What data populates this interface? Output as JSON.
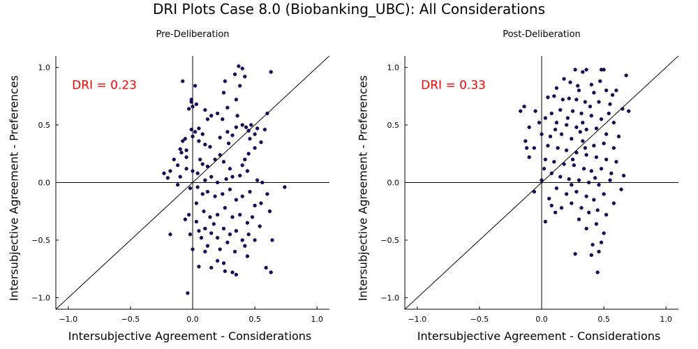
{
  "title": "DRI Plots Case 8.0 (Biobanking_UBC): All Considerations",
  "chart_data": [
    {
      "type": "scatter",
      "title": "Pre-Deliberation",
      "xlabel": "Intersubjective Agreement - Considerations",
      "ylabel": "Intersubjective Agreement - Preferences",
      "xlim": [
        -1.1,
        1.1
      ],
      "ylim": [
        -1.1,
        1.1
      ],
      "xticks": [
        -1.0,
        -0.5,
        0.0,
        0.5,
        1.0
      ],
      "yticks": [
        -1.0,
        -0.5,
        0.0,
        0.5,
        1.0
      ],
      "xtick_labels": [
        "−1.0",
        "−0.5",
        "0.0",
        "0.5",
        "1.0"
      ],
      "ytick_labels": [
        "−1.0",
        "−0.5",
        "0.0",
        "0.5",
        "1.0"
      ],
      "annotation": "DRI = 0.23",
      "grid": false,
      "reference_lines": [
        "x=0",
        "y=0",
        "y=x"
      ],
      "marker_color": "#1a0a6b",
      "annotation_color": "#ff0000",
      "points": [
        [
          -0.08,
          0.88
        ],
        [
          -0.01,
          0.7
        ],
        [
          -0.01,
          0.72
        ],
        [
          0.0,
          0.66
        ],
        [
          0.02,
          0.84
        ],
        [
          -0.03,
          0.64
        ],
        [
          0.03,
          0.68
        ],
        [
          0.26,
          0.88
        ],
        [
          0.34,
          0.94
        ],
        [
          0.37,
          1.01
        ],
        [
          0.4,
          0.99
        ],
        [
          0.42,
          0.92
        ],
        [
          0.63,
          0.96
        ],
        [
          0.38,
          0.84
        ],
        [
          0.25,
          0.78
        ],
        [
          0.35,
          0.72
        ],
        [
          0.28,
          0.65
        ],
        [
          0.2,
          0.6
        ],
        [
          0.24,
          0.55
        ],
        [
          0.15,
          0.58
        ],
        [
          0.1,
          0.63
        ],
        [
          0.12,
          0.55
        ],
        [
          0.05,
          0.47
        ],
        [
          0.08,
          0.42
        ],
        [
          0.02,
          0.44
        ],
        [
          -0.01,
          0.46
        ],
        [
          0.0,
          0.4
        ],
        [
          0.05,
          0.36
        ],
        [
          -0.06,
          0.38
        ],
        [
          -0.08,
          0.36
        ],
        [
          -0.1,
          0.29
        ],
        [
          -0.05,
          0.28
        ],
        [
          0.1,
          0.33
        ],
        [
          0.14,
          0.31
        ],
        [
          0.22,
          0.39
        ],
        [
          0.28,
          0.44
        ],
        [
          0.32,
          0.41
        ],
        [
          0.35,
          0.48
        ],
        [
          0.4,
          0.5
        ],
        [
          0.43,
          0.48
        ],
        [
          0.45,
          0.45
        ],
        [
          0.47,
          0.5
        ],
        [
          0.5,
          0.42
        ],
        [
          0.52,
          0.47
        ],
        [
          0.58,
          0.46
        ],
        [
          0.6,
          0.6
        ],
        [
          0.55,
          0.35
        ],
        [
          0.5,
          0.3
        ],
        [
          0.45,
          0.25
        ],
        [
          0.42,
          0.2
        ],
        [
          0.4,
          0.15
        ],
        [
          0.44,
          0.1
        ],
        [
          0.38,
          0.06
        ],
        [
          0.3,
          0.12
        ],
        [
          0.25,
          0.18
        ],
        [
          0.22,
          0.24
        ],
        [
          0.18,
          0.2
        ],
        [
          0.12,
          0.14
        ],
        [
          0.08,
          0.16
        ],
        [
          0.04,
          0.08
        ],
        [
          0.0,
          0.1
        ],
        [
          -0.05,
          0.12
        ],
        [
          -0.12,
          0.15
        ],
        [
          -0.18,
          0.1
        ],
        [
          -0.23,
          0.08
        ],
        [
          -0.2,
          0.04
        ],
        [
          -0.1,
          0.05
        ],
        [
          -0.15,
          0.2
        ],
        [
          -0.05,
          0.22
        ],
        [
          0.06,
          0.2
        ],
        [
          0.1,
          0.02
        ],
        [
          0.15,
          0.05
        ],
        [
          0.2,
          0.0
        ],
        [
          0.27,
          0.03
        ],
        [
          0.32,
          0.05
        ],
        [
          0.52,
          0.02
        ],
        [
          0.56,
          0.0
        ],
        [
          0.74,
          -0.04
        ],
        [
          -0.12,
          -0.02
        ],
        [
          -0.02,
          -0.05
        ],
        [
          0.04,
          -0.04
        ],
        [
          0.08,
          -0.1
        ],
        [
          0.12,
          -0.08
        ],
        [
          0.18,
          -0.12
        ],
        [
          0.24,
          -0.1
        ],
        [
          0.3,
          -0.06
        ],
        [
          0.35,
          -0.15
        ],
        [
          0.4,
          -0.12
        ],
        [
          0.46,
          -0.08
        ],
        [
          0.5,
          -0.2
        ],
        [
          0.55,
          -0.18
        ],
        [
          0.6,
          -0.1
        ],
        [
          0.62,
          -0.25
        ],
        [
          0.03,
          -0.18
        ],
        [
          0.09,
          -0.25
        ],
        [
          0.14,
          -0.3
        ],
        [
          0.2,
          -0.28
        ],
        [
          0.26,
          -0.22
        ],
        [
          0.32,
          -0.3
        ],
        [
          0.38,
          -0.28
        ],
        [
          0.44,
          -0.35
        ],
        [
          0.48,
          -0.3
        ],
        [
          0.54,
          -0.38
        ],
        [
          -0.06,
          -0.32
        ],
        [
          -0.03,
          -0.28
        ],
        [
          0.05,
          -0.42
        ],
        [
          0.1,
          -0.4
        ],
        [
          0.15,
          -0.44
        ],
        [
          0.2,
          -0.48
        ],
        [
          0.25,
          -0.4
        ],
        [
          0.3,
          -0.45
        ],
        [
          0.35,
          -0.42
        ],
        [
          0.4,
          -0.5
        ],
        [
          0.45,
          -0.45
        ],
        [
          -0.18,
          -0.45
        ],
        [
          -0.02,
          -0.45
        ],
        [
          0.07,
          -0.48
        ],
        [
          0.12,
          -0.55
        ],
        [
          0.22,
          -0.58
        ],
        [
          0.28,
          -0.52
        ],
        [
          0.34,
          -0.6
        ],
        [
          0.42,
          -0.55
        ],
        [
          0.5,
          -0.5
        ],
        [
          0.64,
          -0.5
        ],
        [
          0.0,
          -0.58
        ],
        [
          0.1,
          -0.6
        ],
        [
          0.2,
          -0.68
        ],
        [
          0.25,
          -0.7
        ],
        [
          0.15,
          -0.74
        ],
        [
          0.05,
          -0.73
        ],
        [
          0.32,
          -0.78
        ],
        [
          0.26,
          -0.77
        ],
        [
          0.35,
          -0.8
        ],
        [
          0.44,
          -0.64
        ],
        [
          0.59,
          -0.74
        ],
        [
          0.63,
          -0.78
        ],
        [
          -0.04,
          -0.96
        ],
        [
          0.17,
          -0.36
        ],
        [
          0.03,
          -0.34
        ],
        [
          -0.09,
          0.26
        ],
        [
          0.36,
          0.58
        ],
        [
          0.46,
          0.38
        ],
        [
          0.29,
          0.34
        ]
      ]
    },
    {
      "type": "scatter",
      "title": "Post-Deliberation",
      "xlabel": "Intersubjective Agreement - Considerations",
      "ylabel": "Intersubjective Agreement - Preferences",
      "xlim": [
        -1.1,
        1.1
      ],
      "ylim": [
        -1.1,
        1.1
      ],
      "xticks": [
        -1.0,
        -0.5,
        0.0,
        0.5,
        1.0
      ],
      "yticks": [
        -1.0,
        -0.5,
        0.0,
        0.5,
        1.0
      ],
      "xtick_labels": [
        "−1.0",
        "−0.5",
        "0.0",
        "0.5",
        "1.0"
      ],
      "ytick_labels": [
        "−1.0",
        "−0.5",
        "0.0",
        "0.5",
        "1.0"
      ],
      "annotation": "DRI = 0.33",
      "grid": false,
      "reference_lines": [
        "x=0",
        "y=0",
        "y=x"
      ],
      "marker_color": "#1a0a6b",
      "annotation_color": "#ff0000",
      "points": [
        [
          0.27,
          0.98
        ],
        [
          0.33,
          0.96
        ],
        [
          0.48,
          0.98
        ],
        [
          0.5,
          0.98
        ],
        [
          0.36,
          0.98
        ],
        [
          0.68,
          0.93
        ],
        [
          0.18,
          0.9
        ],
        [
          0.23,
          0.87
        ],
        [
          0.4,
          0.85
        ],
        [
          0.6,
          0.8
        ],
        [
          0.12,
          0.82
        ],
        [
          0.3,
          0.8
        ],
        [
          0.42,
          0.78
        ],
        [
          0.52,
          0.8
        ],
        [
          0.57,
          0.76
        ],
        [
          0.05,
          0.74
        ],
        [
          0.1,
          0.75
        ],
        [
          0.22,
          0.73
        ],
        [
          0.28,
          0.72
        ],
        [
          0.35,
          0.7
        ],
        [
          0.46,
          0.7
        ],
        [
          0.55,
          0.68
        ],
        [
          0.65,
          0.64
        ],
        [
          0.7,
          0.62
        ],
        [
          -0.17,
          0.62
        ],
        [
          -0.14,
          0.66
        ],
        [
          -0.05,
          0.62
        ],
        [
          0.08,
          0.6
        ],
        [
          0.15,
          0.63
        ],
        [
          0.25,
          0.62
        ],
        [
          0.32,
          0.6
        ],
        [
          0.4,
          0.58
        ],
        [
          0.48,
          0.55
        ],
        [
          0.58,
          0.52
        ],
        [
          0.03,
          0.56
        ],
        [
          0.12,
          0.52
        ],
        [
          0.2,
          0.5
        ],
        [
          0.28,
          0.48
        ],
        [
          0.36,
          0.46
        ],
        [
          0.44,
          0.47
        ],
        [
          0.52,
          0.42
        ],
        [
          0.62,
          0.4
        ],
        [
          -0.1,
          0.48
        ],
        [
          0.0,
          0.42
        ],
        [
          0.07,
          0.4
        ],
        [
          0.16,
          0.42
        ],
        [
          0.24,
          0.38
        ],
        [
          0.33,
          0.36
        ],
        [
          0.42,
          0.32
        ],
        [
          0.5,
          0.34
        ],
        [
          0.58,
          0.3
        ],
        [
          -0.13,
          0.36
        ],
        [
          -0.06,
          0.3
        ],
        [
          0.05,
          0.32
        ],
        [
          0.13,
          0.3
        ],
        [
          0.2,
          0.28
        ],
        [
          0.28,
          0.26
        ],
        [
          0.36,
          0.24
        ],
        [
          0.44,
          0.22
        ],
        [
          0.52,
          0.2
        ],
        [
          0.6,
          0.18
        ],
        [
          -0.12,
          0.3
        ],
        [
          -0.1,
          0.22
        ],
        [
          0.03,
          0.2
        ],
        [
          0.1,
          0.18
        ],
        [
          0.18,
          0.16
        ],
        [
          0.26,
          0.15
        ],
        [
          0.34,
          0.12
        ],
        [
          0.4,
          0.1
        ],
        [
          0.48,
          0.12
        ],
        [
          0.56,
          0.08
        ],
        [
          0.66,
          0.06
        ],
        [
          0.02,
          0.12
        ],
        [
          0.08,
          0.08
        ],
        [
          0.15,
          0.05
        ],
        [
          0.22,
          0.03
        ],
        [
          0.3,
          0.02
        ],
        [
          0.38,
          0.0
        ],
        [
          0.46,
          -0.02
        ],
        [
          0.55,
          0.02
        ],
        [
          0.64,
          -0.06
        ],
        [
          0.0,
          0.02
        ],
        [
          -0.06,
          -0.08
        ],
        [
          0.12,
          -0.05
        ],
        [
          0.2,
          -0.1
        ],
        [
          0.28,
          -0.08
        ],
        [
          0.36,
          -0.12
        ],
        [
          0.42,
          -0.15
        ],
        [
          0.5,
          -0.1
        ],
        [
          0.58,
          -0.18
        ],
        [
          0.08,
          -0.2
        ],
        [
          0.16,
          -0.22
        ],
        [
          0.24,
          -0.18
        ],
        [
          0.32,
          -0.22
        ],
        [
          0.38,
          -0.26
        ],
        [
          0.45,
          -0.24
        ],
        [
          0.52,
          -0.28
        ],
        [
          0.11,
          -0.26
        ],
        [
          0.03,
          -0.34
        ],
        [
          0.3,
          -0.32
        ],
        [
          0.36,
          -0.4
        ],
        [
          0.44,
          -0.36
        ],
        [
          0.5,
          -0.44
        ],
        [
          0.41,
          -0.54
        ],
        [
          0.48,
          -0.52
        ],
        [
          0.46,
          -0.6
        ],
        [
          0.27,
          -0.62
        ],
        [
          0.4,
          -0.63
        ],
        [
          0.45,
          -0.78
        ],
        [
          0.25,
          0.2
        ],
        [
          0.31,
          0.44
        ],
        [
          0.39,
          0.66
        ],
        [
          0.17,
          0.72
        ],
        [
          0.47,
          0.88
        ],
        [
          0.54,
          0.6
        ],
        [
          0.11,
          0.46
        ],
        [
          -0.02,
          0.52
        ],
        [
          0.21,
          0.56
        ],
        [
          0.29,
          0.84
        ],
        [
          0.35,
          0.3
        ],
        [
          0.43,
          0.04
        ],
        [
          0.06,
          -0.14
        ],
        [
          0.24,
          -0.02
        ],
        [
          0.33,
          0.52
        ]
      ]
    }
  ]
}
